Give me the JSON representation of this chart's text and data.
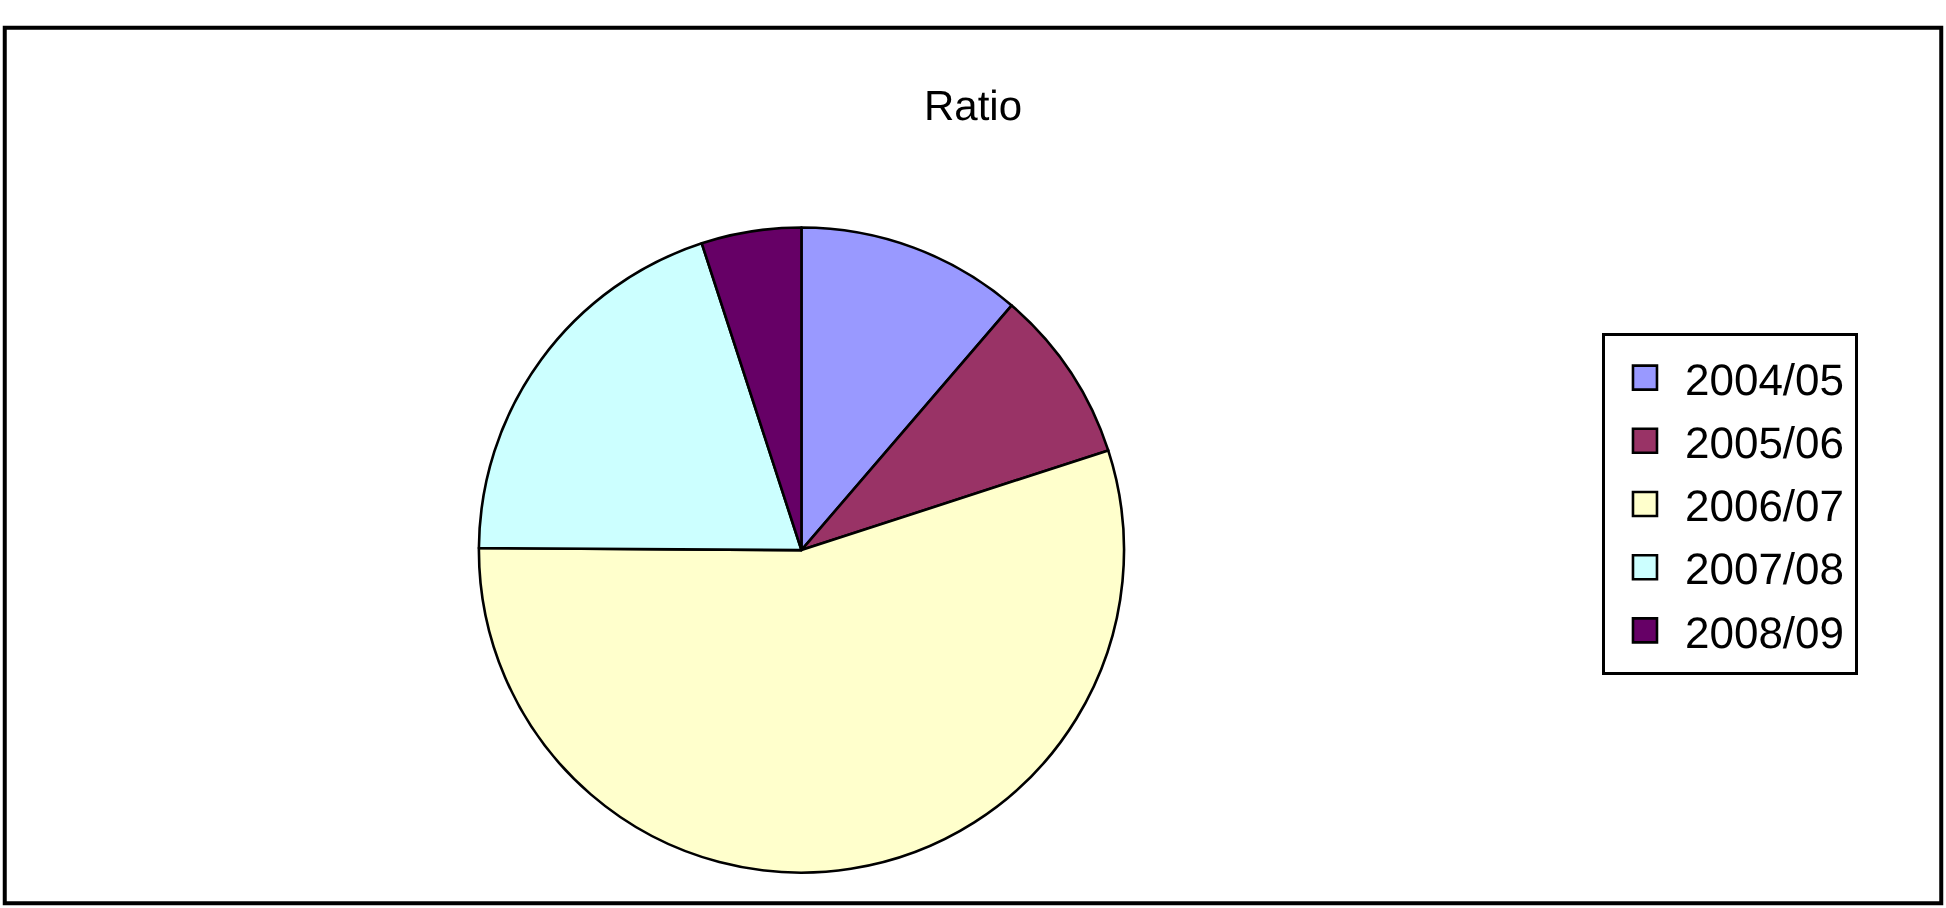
{
  "chart_data": {
    "type": "pie",
    "title": "Ratio",
    "categories": [
      "2004/05",
      "2005/06",
      "2006/07",
      "2007/08",
      "2008/09"
    ],
    "values": [
      11.3,
      8.7,
      55.1,
      19.9,
      5
    ],
    "colors": [
      "#9999ff",
      "#993366",
      "#ffffcc",
      "#ccffff",
      "#660066"
    ],
    "legend": "right"
  }
}
